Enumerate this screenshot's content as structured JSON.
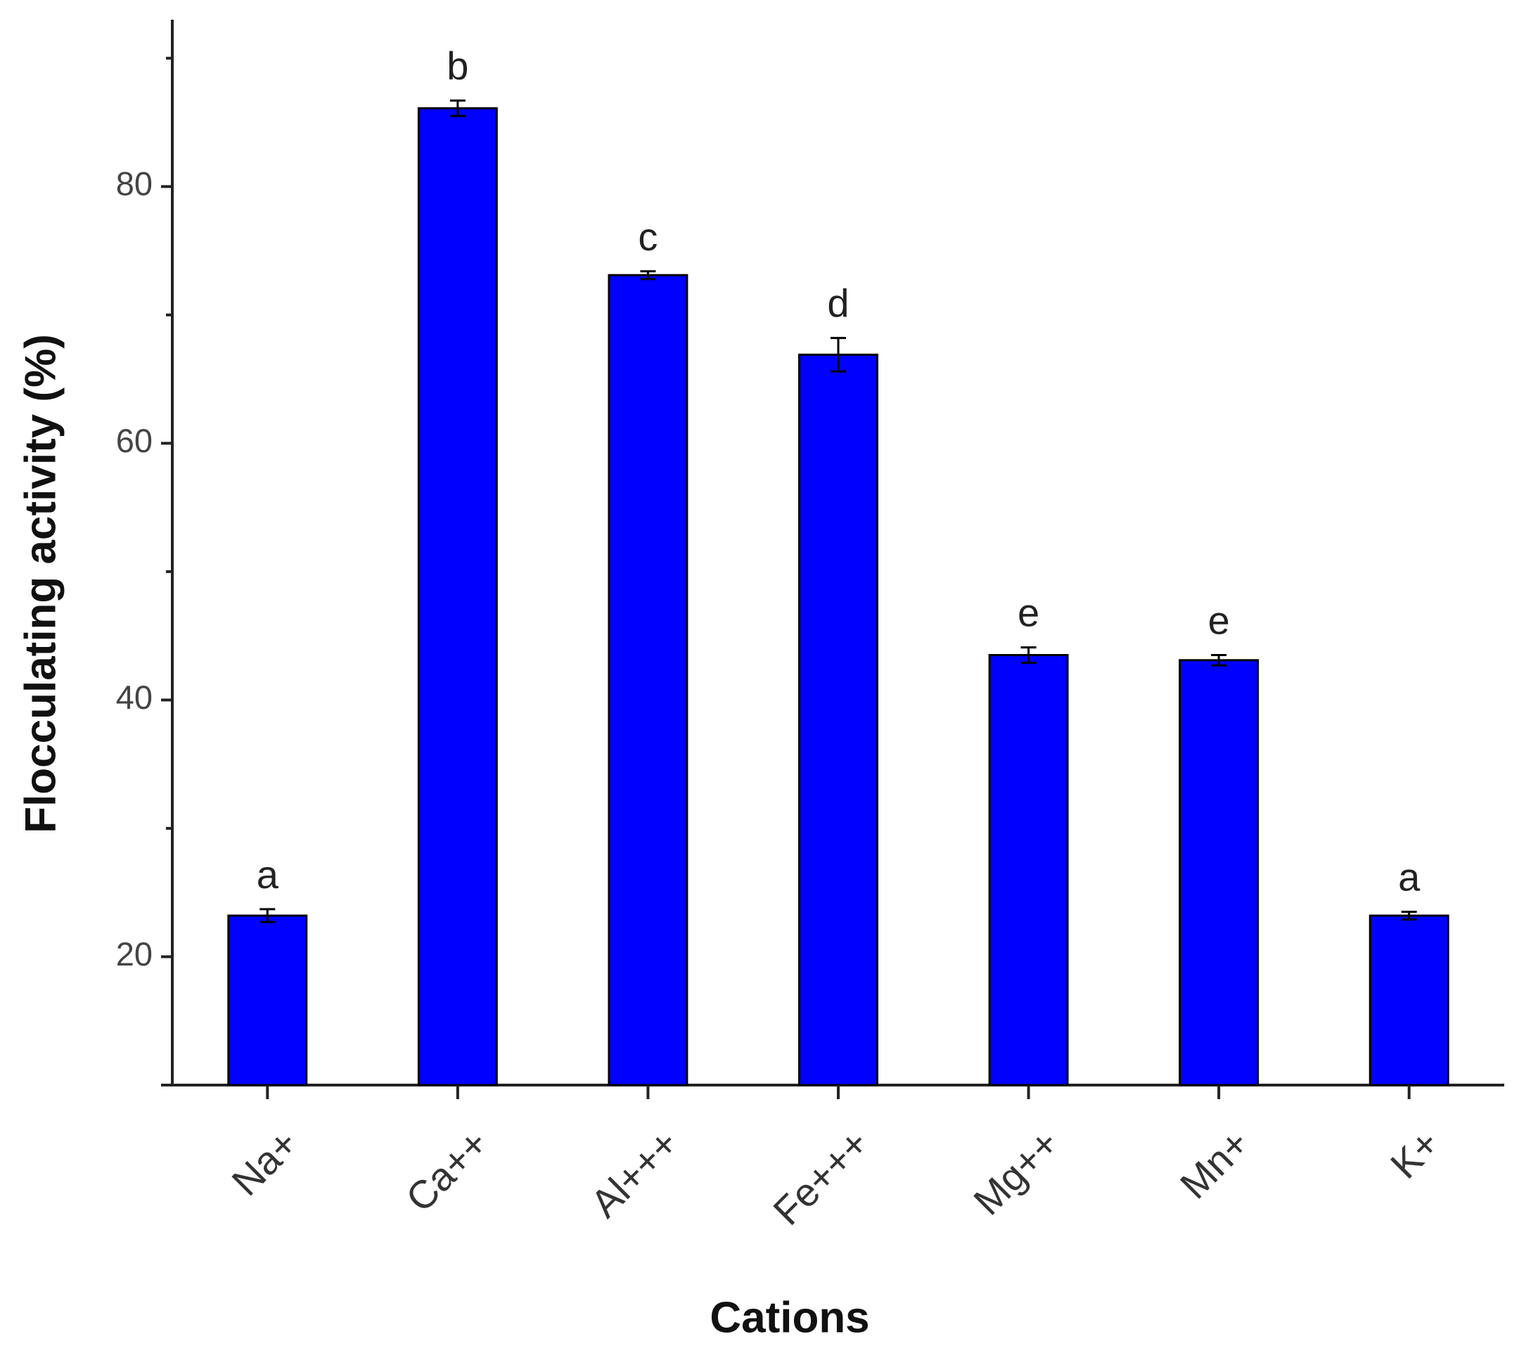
{
  "chart_data": {
    "type": "bar",
    "x_label": "Cations",
    "y_label": "Flocculating activity (%)",
    "categories": [
      "Na+",
      "Ca++",
      "Al+++",
      "Fe+++",
      "Mg++",
      "Mn+",
      "K+"
    ],
    "values": [
      23.2,
      86.1,
      73.1,
      66.9,
      43.5,
      43.1,
      23.2
    ],
    "errors": [
      0.5,
      0.6,
      0.3,
      1.3,
      0.6,
      0.4,
      0.3
    ],
    "annotations": [
      "a",
      "b",
      "c",
      "d",
      "e",
      "e",
      "a"
    ],
    "color": "#0000ff",
    "ylim": [
      10,
      93
    ],
    "yticks": [
      20,
      40,
      60,
      80
    ]
  }
}
